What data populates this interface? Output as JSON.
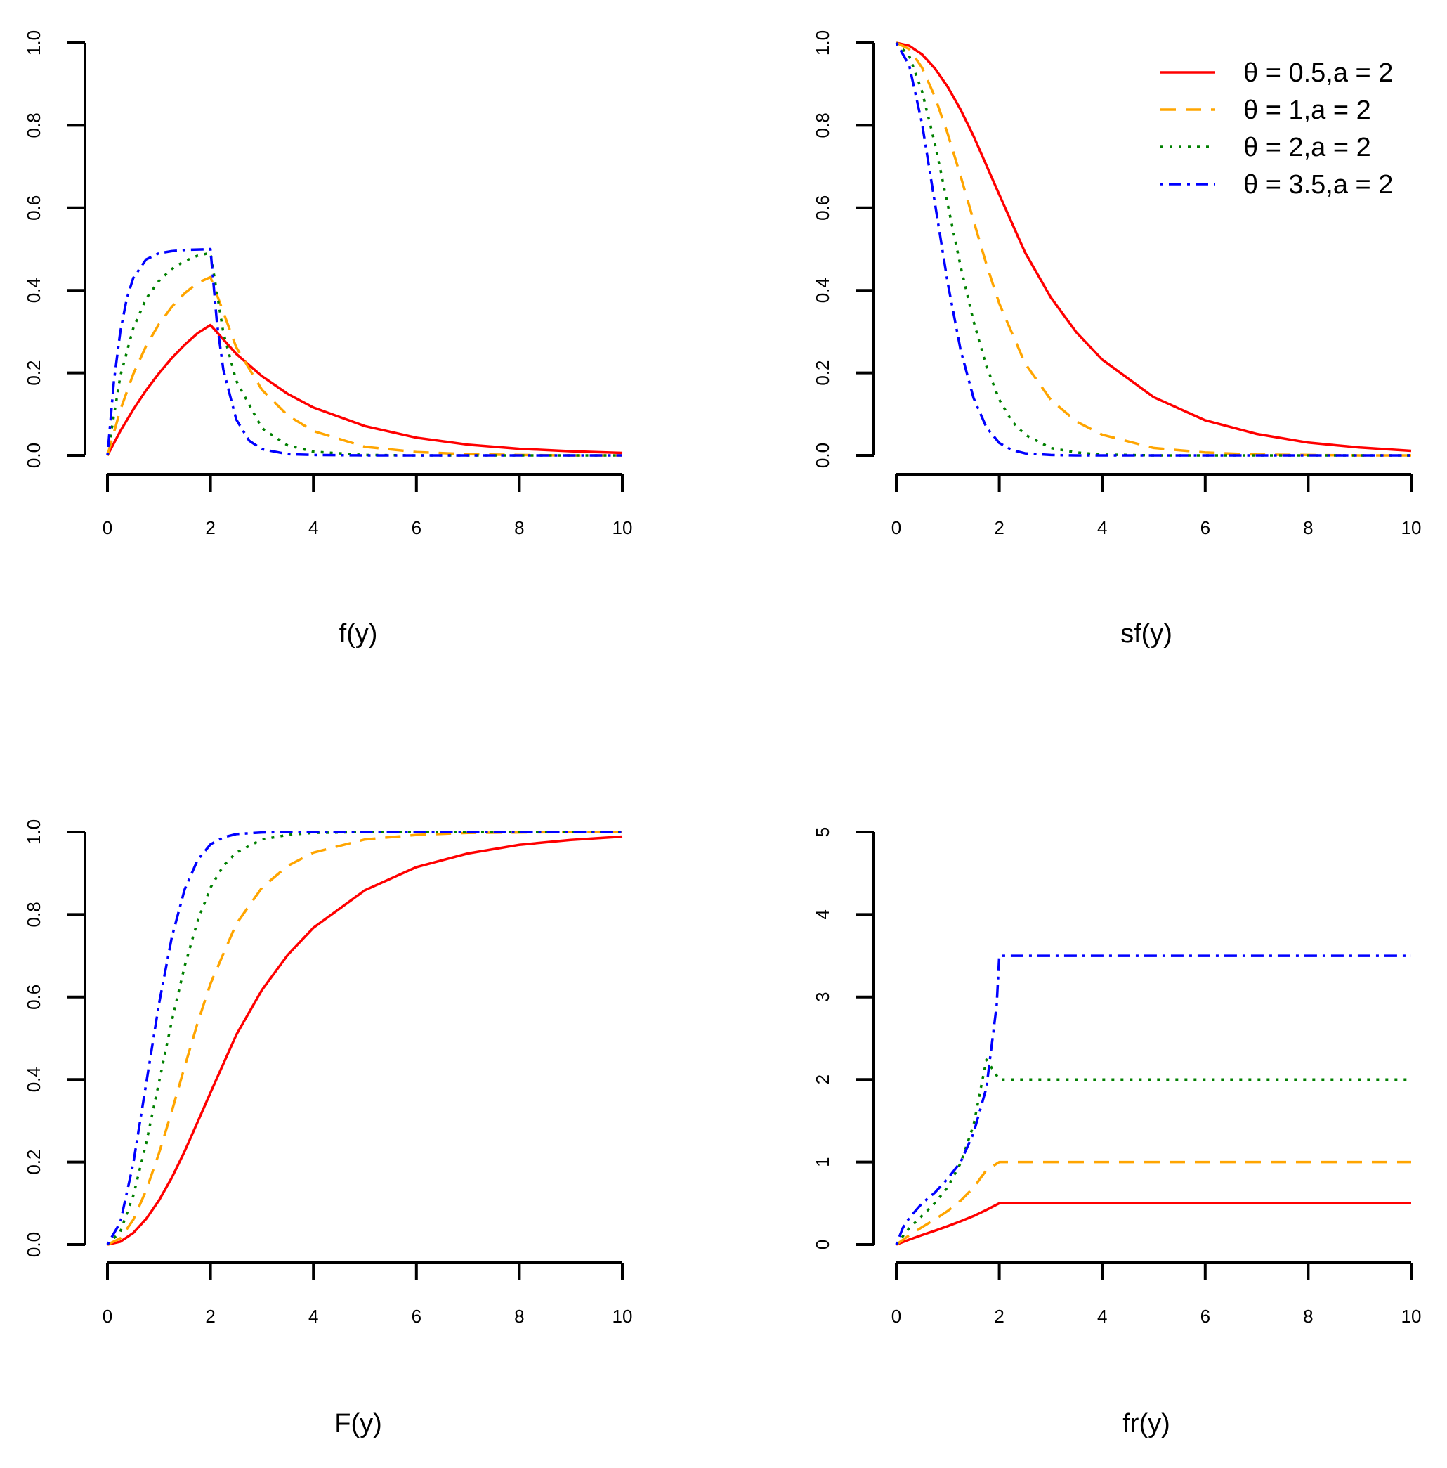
{
  "chart_data": [
    {
      "type": "line",
      "id": "pdf",
      "xlabel": "f(y)",
      "xlim": [
        0,
        10
      ],
      "ylim": [
        0,
        1
      ],
      "xticks": [
        "0",
        "2",
        "4",
        "6",
        "8",
        "10"
      ],
      "yticks": [
        "0.0",
        "0.2",
        "0.4",
        "0.6",
        "0.8",
        "1.0"
      ],
      "series": [
        {
          "name": "θ = 0.5,a = 2",
          "color": "#ff0000",
          "dash": "solid",
          "x": [
            0,
            0.25,
            0.5,
            0.75,
            1,
            1.25,
            1.5,
            1.75,
            2,
            2.5,
            3,
            3.5,
            4,
            5,
            6,
            7,
            8,
            9,
            10
          ],
          "y": [
            0,
            0.059,
            0.111,
            0.158,
            0.199,
            0.236,
            0.268,
            0.296,
            0.316,
            0.246,
            0.192,
            0.149,
            0.116,
            0.071,
            0.043,
            0.026,
            0.016,
            0.01,
            0.006
          ]
        },
        {
          "name": "θ = 1,a = 2",
          "color": "#ffa500",
          "dash": "long-dash",
          "x": [
            0,
            0.25,
            0.5,
            0.75,
            1,
            1.25,
            1.5,
            1.75,
            2,
            2.5,
            3,
            3.5,
            4,
            5,
            6,
            7,
            8,
            9,
            10
          ],
          "y": [
            0,
            0.11,
            0.197,
            0.265,
            0.318,
            0.36,
            0.393,
            0.418,
            0.432,
            0.262,
            0.159,
            0.097,
            0.059,
            0.021,
            0.008,
            0.003,
            0.001,
            0,
            0
          ]
        },
        {
          "name": "θ = 2,a = 2",
          "color": "#008000",
          "dash": "dotted",
          "x": [
            0,
            0.25,
            0.5,
            0.75,
            1,
            1.25,
            1.5,
            1.75,
            2,
            2.25,
            2.5,
            3,
            3.5,
            4,
            5,
            6,
            7,
            8,
            9,
            10
          ],
          "y": [
            0,
            0.192,
            0.308,
            0.38,
            0.423,
            0.452,
            0.471,
            0.484,
            0.491,
            0.298,
            0.181,
            0.066,
            0.024,
            0.009,
            0.001,
            0,
            0,
            0,
            0,
            0
          ]
        },
        {
          "name": "θ = 3.5,a = 2",
          "color": "#0000ff",
          "dash": "dot-dash",
          "x": [
            0,
            0.125,
            0.25,
            0.375,
            0.5,
            0.75,
            1,
            1.25,
            1.5,
            1.75,
            2,
            2.125,
            2.25,
            2.5,
            2.75,
            3,
            3.5,
            4,
            5,
            6,
            7,
            8,
            9,
            10
          ],
          "y": [
            0,
            0.18,
            0.3,
            0.38,
            0.43,
            0.475,
            0.49,
            0.495,
            0.498,
            0.499,
            0.5,
            0.322,
            0.208,
            0.087,
            0.036,
            0.015,
            0.003,
            0.001,
            0,
            0,
            0,
            0,
            0,
            0
          ]
        }
      ]
    },
    {
      "type": "line",
      "id": "survival",
      "xlabel": "sf(y)",
      "xlim": [
        0,
        10
      ],
      "ylim": [
        0,
        1
      ],
      "xticks": [
        "0",
        "2",
        "4",
        "6",
        "8",
        "10"
      ],
      "yticks": [
        "0.0",
        "0.2",
        "0.4",
        "0.6",
        "0.8",
        "1.0"
      ],
      "legend": {
        "position": "top-right"
      },
      "series": [
        {
          "name": "θ = 0.5,a = 2",
          "color": "#ff0000",
          "dash": "solid",
          "x": [
            0,
            0.25,
            0.5,
            0.75,
            1,
            1.25,
            1.5,
            1.75,
            2,
            2.5,
            3,
            3.5,
            4,
            5,
            6,
            7,
            8,
            9,
            10
          ],
          "y": [
            1,
            0.993,
            0.972,
            0.938,
            0.893,
            0.838,
            0.774,
            0.703,
            0.632,
            0.492,
            0.383,
            0.298,
            0.232,
            0.141,
            0.085,
            0.052,
            0.031,
            0.019,
            0.011
          ]
        },
        {
          "name": "θ = 1,a = 2",
          "color": "#ffa500",
          "dash": "long-dash",
          "x": [
            0,
            0.25,
            0.5,
            0.75,
            1,
            1.25,
            1.5,
            1.75,
            2,
            2.5,
            3,
            3.5,
            4,
            5,
            6,
            7,
            8,
            9,
            10
          ],
          "y": [
            1,
            0.985,
            0.94,
            0.869,
            0.779,
            0.677,
            0.569,
            0.463,
            0.368,
            0.223,
            0.135,
            0.082,
            0.05,
            0.018,
            0.007,
            0.002,
            0.001,
            0,
            0
          ]
        },
        {
          "name": "θ = 2,a = 2",
          "color": "#008000",
          "dash": "dotted",
          "x": [
            0,
            0.25,
            0.5,
            0.75,
            1,
            1.25,
            1.5,
            1.75,
            2,
            2.25,
            2.5,
            3,
            3.5,
            4,
            5,
            6,
            7,
            8,
            9,
            10
          ],
          "y": [
            1,
            0.969,
            0.882,
            0.755,
            0.607,
            0.458,
            0.325,
            0.216,
            0.135,
            0.082,
            0.05,
            0.018,
            0.007,
            0.002,
            0,
            0,
            0,
            0,
            0,
            0
          ]
        },
        {
          "name": "θ = 3.5,a = 2",
          "color": "#0000ff",
          "dash": "dot-dash",
          "x": [
            0,
            0.25,
            0.5,
            0.75,
            1,
            1.25,
            1.5,
            1.75,
            2,
            2.25,
            2.5,
            3,
            3.5,
            4,
            5,
            6,
            7,
            8,
            9,
            10
          ],
          "y": [
            1,
            0.946,
            0.804,
            0.611,
            0.417,
            0.255,
            0.139,
            0.068,
            0.03,
            0.013,
            0.005,
            0.001,
            0,
            0,
            0,
            0,
            0,
            0,
            0,
            0
          ]
        }
      ]
    },
    {
      "type": "line",
      "id": "cdf",
      "xlabel": "F(y)",
      "xlim": [
        0,
        10
      ],
      "ylim": [
        0,
        1
      ],
      "xticks": [
        "0",
        "2",
        "4",
        "6",
        "8",
        "10"
      ],
      "yticks": [
        "0.0",
        "0.2",
        "0.4",
        "0.6",
        "0.8",
        "1.0"
      ],
      "series": [
        {
          "name": "θ = 0.5,a = 2",
          "color": "#ff0000",
          "dash": "solid",
          "x": [
            0,
            0.25,
            0.5,
            0.75,
            1,
            1.25,
            1.5,
            1.75,
            2,
            2.5,
            3,
            3.5,
            4,
            5,
            6,
            7,
            8,
            9,
            10
          ],
          "y": [
            0,
            0.007,
            0.028,
            0.062,
            0.107,
            0.162,
            0.226,
            0.297,
            0.368,
            0.508,
            0.617,
            0.702,
            0.768,
            0.859,
            0.915,
            0.948,
            0.969,
            0.981,
            0.989
          ]
        },
        {
          "name": "θ = 1,a = 2",
          "color": "#ffa500",
          "dash": "long-dash",
          "x": [
            0,
            0.25,
            0.5,
            0.75,
            1,
            1.25,
            1.5,
            1.75,
            2,
            2.5,
            3,
            3.5,
            4,
            5,
            6,
            7,
            8,
            9,
            10
          ],
          "y": [
            0,
            0.015,
            0.06,
            0.131,
            0.221,
            0.323,
            0.431,
            0.537,
            0.632,
            0.777,
            0.865,
            0.918,
            0.95,
            0.982,
            0.993,
            0.998,
            0.999,
            1,
            1
          ]
        },
        {
          "name": "θ = 2,a = 2",
          "color": "#008000",
          "dash": "dotted",
          "x": [
            0,
            0.25,
            0.5,
            0.75,
            1,
            1.25,
            1.5,
            1.75,
            2,
            2.25,
            2.5,
            3,
            3.5,
            4,
            5,
            6,
            7,
            8,
            9,
            10
          ],
          "y": [
            0,
            0.031,
            0.118,
            0.245,
            0.393,
            0.542,
            0.675,
            0.784,
            0.865,
            0.918,
            0.95,
            0.982,
            0.993,
            0.998,
            1,
            1,
            1,
            1,
            1,
            1
          ]
        },
        {
          "name": "θ = 3.5,a = 2",
          "color": "#0000ff",
          "dash": "dot-dash",
          "x": [
            0,
            0.25,
            0.5,
            0.75,
            1,
            1.25,
            1.5,
            1.75,
            2,
            2.25,
            2.5,
            3,
            3.5,
            4,
            5,
            6,
            7,
            8,
            9,
            10
          ],
          "y": [
            0,
            0.054,
            0.196,
            0.389,
            0.583,
            0.745,
            0.861,
            0.932,
            0.97,
            0.987,
            0.995,
            0.999,
            1,
            1,
            1,
            1,
            1,
            1,
            1,
            1
          ]
        }
      ]
    },
    {
      "type": "line",
      "id": "failure-rate",
      "xlabel": "fr(y)",
      "xlim": [
        0,
        10
      ],
      "ylim": [
        0,
        5
      ],
      "xticks": [
        "0",
        "2",
        "4",
        "6",
        "8",
        "10"
      ],
      "yticks": [
        "0",
        "1",
        "2",
        "3",
        "4",
        "5"
      ],
      "series": [
        {
          "name": "θ = 0.5,a = 2",
          "color": "#ff0000",
          "dash": "solid",
          "x": [
            0,
            0.25,
            0.5,
            0.75,
            1,
            1.25,
            1.5,
            1.75,
            2,
            10
          ],
          "y": [
            0,
            0.06,
            0.115,
            0.168,
            0.223,
            0.282,
            0.346,
            0.42,
            0.5,
            0.5
          ]
        },
        {
          "name": "θ = 1,a = 2",
          "color": "#ffa500",
          "dash": "long-dash",
          "x": [
            0,
            0.25,
            0.5,
            0.75,
            1,
            1.25,
            1.5,
            1.75,
            2,
            10
          ],
          "y": [
            0,
            0.112,
            0.21,
            0.305,
            0.408,
            0.532,
            0.69,
            0.902,
            1,
            1
          ]
        },
        {
          "name": "θ = 2,a = 2",
          "color": "#008000",
          "dash": "dotted",
          "x": [
            0,
            0.25,
            0.5,
            0.75,
            1,
            1.25,
            1.5,
            1.75,
            2,
            10
          ],
          "y": [
            0,
            0.198,
            0.349,
            0.503,
            0.697,
            0.988,
            1.449,
            2.24,
            2,
            2
          ]
        },
        {
          "name": "θ = 3.5,a = 2",
          "color": "#0000ff",
          "dash": "dot-dash",
          "x": [
            0,
            0.125,
            0.25,
            0.5,
            0.75,
            1,
            1.25,
            1.5,
            1.75,
            1.95,
            2,
            10
          ],
          "y": [
            0,
            0.2,
            0.32,
            0.5,
            0.63,
            0.8,
            1.0,
            1.35,
            1.9,
            2.9,
            3.5,
            3.5
          ]
        }
      ]
    }
  ]
}
